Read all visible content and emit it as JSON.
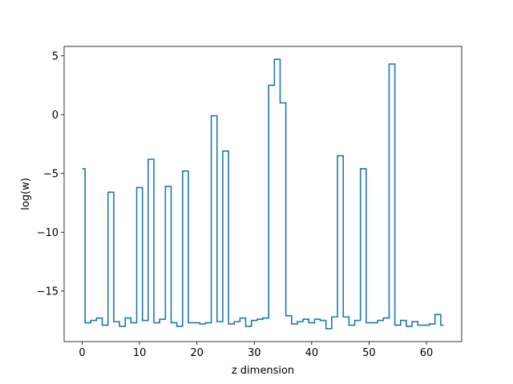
{
  "chart_data": {
    "type": "line",
    "drawstyle": "steps-mid",
    "title": "",
    "xlabel": "z dimension",
    "ylabel": "log(w)",
    "xlim": [
      -3.15,
      66.15
    ],
    "ylim": [
      -19.3,
      5.8
    ],
    "xticks": [
      0,
      10,
      20,
      30,
      40,
      50,
      60
    ],
    "yticks": [
      5,
      0,
      -5,
      -10,
      -15
    ],
    "ytick_labels": [
      "5",
      "0",
      "−5",
      "−10",
      "−15"
    ],
    "grid": false,
    "legend": null,
    "series": [
      {
        "color": "#1f77b4",
        "x": [
          0,
          1,
          2,
          3,
          4,
          5,
          6,
          7,
          8,
          9,
          10,
          11,
          12,
          13,
          14,
          15,
          16,
          17,
          18,
          19,
          20,
          21,
          22,
          23,
          24,
          25,
          26,
          27,
          28,
          29,
          30,
          31,
          32,
          33,
          34,
          35,
          36,
          37,
          38,
          39,
          40,
          41,
          42,
          43,
          44,
          45,
          46,
          47,
          48,
          49,
          50,
          51,
          52,
          53,
          54,
          55,
          56,
          57,
          58,
          59,
          60,
          61,
          62,
          63
        ],
        "y": [
          -4.6,
          -17.7,
          -17.5,
          -17.3,
          -17.9,
          -6.6,
          -17.6,
          -18.0,
          -17.3,
          -17.7,
          -6.2,
          -17.5,
          -3.8,
          -17.7,
          -17.4,
          -6.1,
          -17.7,
          -18.0,
          -4.8,
          -17.7,
          -17.7,
          -17.8,
          -17.7,
          -0.1,
          -17.6,
          -3.1,
          -17.8,
          -17.6,
          -17.3,
          -18.0,
          -17.5,
          -17.4,
          -17.3,
          2.5,
          4.7,
          1.0,
          -17.1,
          -17.8,
          -17.6,
          -17.4,
          -17.7,
          -17.4,
          -17.5,
          -18.2,
          -17.2,
          -3.5,
          -17.2,
          -17.9,
          -17.5,
          -4.6,
          -17.7,
          -17.7,
          -17.5,
          -17.3,
          4.3,
          -17.9,
          -17.5,
          -18.0,
          -17.6,
          -17.9,
          -17.9,
          -17.8,
          -17.0,
          -17.9
        ]
      }
    ]
  }
}
